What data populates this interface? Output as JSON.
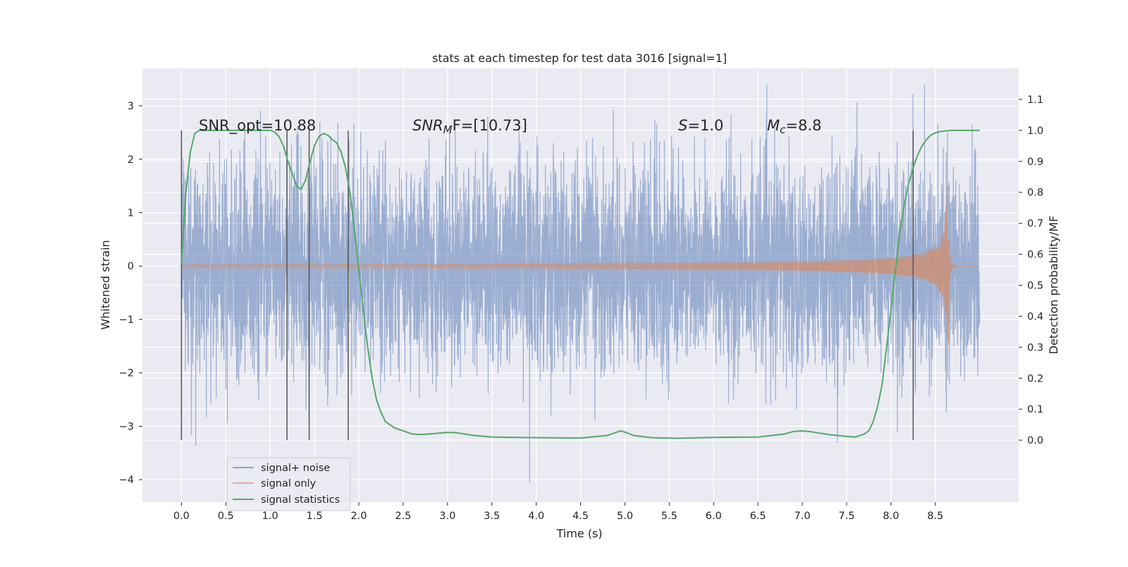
{
  "chart_data": {
    "type": "line",
    "title": "stats at each timestep for test data 3016 [signal=1]",
    "xlabel": "Time (s)",
    "ylabel": "Whitened strain",
    "ylabel_right": "Detection probability/MF",
    "xlim": [
      -0.44,
      9.44
    ],
    "ylim": [
      -4.42,
      3.7
    ],
    "ylim_right": [
      -0.2,
      1.2
    ],
    "x_ticks": [
      "0.0",
      "0.5",
      "1.0",
      "1.5",
      "2.0",
      "2.5",
      "3.0",
      "3.5",
      "4.0",
      "4.5",
      "5.0",
      "5.5",
      "6.0",
      "6.5",
      "7.0",
      "7.5",
      "8.0",
      "8.5"
    ],
    "y_ticks": [
      "3",
      "2",
      "1",
      "0",
      "−1",
      "−2",
      "−3",
      "−4"
    ],
    "y_ticks_right": [
      "1.1",
      "1.0",
      "0.9",
      "0.8",
      "0.7",
      "0.6",
      "0.5",
      "0.4",
      "0.3",
      "0.2",
      "0.1",
      "0.0"
    ],
    "grid": true,
    "legend_position": "lower-left",
    "annotations": {
      "snr_opt": "SNR_opt=10.88",
      "snr_mf_name": "SNR",
      "snr_mf_sub": "M",
      "snr_mf_rest": "F=[10.73]",
      "s_name": "S",
      "s_rest": "=1.0",
      "mc_name": "M",
      "mc_sub": "c",
      "mc_rest": "=8.8"
    },
    "vertical_markers": [
      0.0,
      1.19,
      1.44,
      1.88,
      8.25
    ],
    "series": [
      {
        "name": "signal+ noise",
        "color": "#4c72b0",
        "description": "whitened noisy strain, approx. amplitude range -2.5 to 2.5 with spikes to about 3.4 and -4.0",
        "x_range": [
          0.0,
          9.0
        ],
        "envelope": [
          -2.3,
          2.3
        ]
      },
      {
        "name": "signal only",
        "color": "#dd8452",
        "description": "chirp waveform growing from 0 to about ±1.5, ending at 8.65 s",
        "x_range": [
          0.0,
          9.0
        ],
        "chirp_end": 8.65,
        "chirp_peak_amplitude": 1.5
      },
      {
        "name": "signal statistics",
        "color": "#55a868",
        "x": [
          0.0,
          0.05,
          0.1,
          0.15,
          0.2,
          0.3,
          0.5,
          0.8,
          1.0,
          1.05,
          1.1,
          1.15,
          1.2,
          1.25,
          1.3,
          1.35,
          1.4,
          1.45,
          1.5,
          1.55,
          1.6,
          1.65,
          1.7,
          1.75,
          1.8,
          1.85,
          1.9,
          1.95,
          2.0,
          2.05,
          2.1,
          2.15,
          2.2,
          2.25,
          2.3,
          2.4,
          2.5,
          2.6,
          2.7,
          2.8,
          3.0,
          3.1,
          3.3,
          3.5,
          4.0,
          4.5,
          4.8,
          4.9,
          4.95,
          5.0,
          5.1,
          5.3,
          5.6,
          6.0,
          6.5,
          6.8,
          6.9,
          7.0,
          7.1,
          7.3,
          7.5,
          7.6,
          7.7,
          7.75,
          7.8,
          7.85,
          7.9,
          7.95,
          8.0,
          8.05,
          8.1,
          8.15,
          8.2,
          8.25,
          8.3,
          8.35,
          8.4,
          8.45,
          8.5,
          8.55,
          8.6,
          8.7,
          9.0
        ],
        "y": [
          0.57,
          0.8,
          0.93,
          0.99,
          1.0,
          1.0,
          1.0,
          1.0,
          1.0,
          0.995,
          0.98,
          0.95,
          0.9,
          0.86,
          0.82,
          0.81,
          0.84,
          0.9,
          0.95,
          0.98,
          0.99,
          0.985,
          0.97,
          0.96,
          0.93,
          0.88,
          0.8,
          0.68,
          0.55,
          0.42,
          0.3,
          0.2,
          0.13,
          0.09,
          0.06,
          0.04,
          0.03,
          0.02,
          0.018,
          0.02,
          0.025,
          0.024,
          0.015,
          0.01,
          0.008,
          0.007,
          0.015,
          0.025,
          0.03,
          0.026,
          0.015,
          0.008,
          0.006,
          0.009,
          0.01,
          0.02,
          0.028,
          0.03,
          0.027,
          0.018,
          0.012,
          0.01,
          0.02,
          0.03,
          0.06,
          0.11,
          0.18,
          0.3,
          0.42,
          0.55,
          0.67,
          0.76,
          0.83,
          0.88,
          0.92,
          0.95,
          0.97,
          0.985,
          0.992,
          0.996,
          0.998,
          1.0,
          1.0
        ]
      }
    ]
  }
}
